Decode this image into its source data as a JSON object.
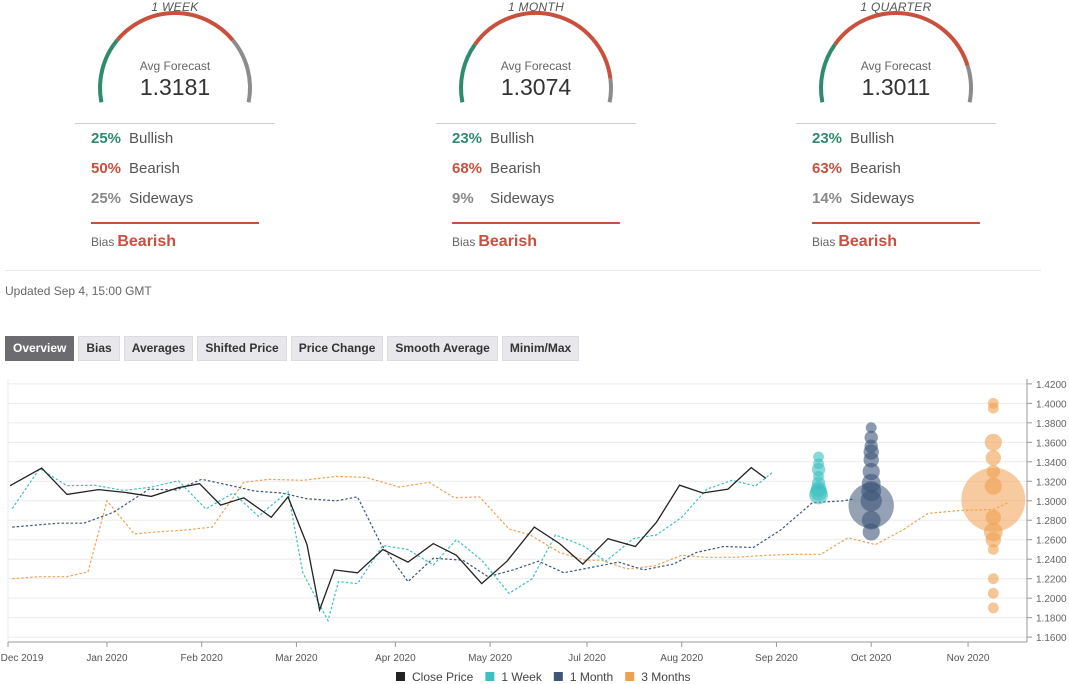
{
  "colors": {
    "bullish": "#2e8b6e",
    "bearish": "#c8503c",
    "sideways": "#8c8c8c",
    "close": "#222222",
    "week": "#3cc0c0",
    "month": "#3e5678",
    "quarter": "#f0a050"
  },
  "panels": [
    {
      "period": "1 WEEK",
      "avg_label": "Avg Forecast",
      "avg_value": "1.3181",
      "bullish": {
        "pct": "25%",
        "label": "Bullish",
        "value": 25
      },
      "bearish": {
        "pct": "50%",
        "label": "Bearish",
        "value": 50
      },
      "sideways": {
        "pct": "25%",
        "label": "Sideways",
        "value": 25
      },
      "bias_label": "Bias",
      "bias_value": "Bearish"
    },
    {
      "period": "1 MONTH",
      "avg_label": "Avg Forecast",
      "avg_value": "1.3074",
      "bullish": {
        "pct": "23%",
        "label": "Bullish",
        "value": 23
      },
      "bearish": {
        "pct": "68%",
        "label": "Bearish",
        "value": 68
      },
      "sideways": {
        "pct": "9%",
        "label": "Sideways",
        "value": 9
      },
      "bias_label": "Bias",
      "bias_value": "Bearish"
    },
    {
      "period": "1 QUARTER",
      "avg_label": "Avg Forecast",
      "avg_value": "1.3011",
      "bullish": {
        "pct": "23%",
        "label": "Bullish",
        "value": 23
      },
      "bearish": {
        "pct": "63%",
        "label": "Bearish",
        "value": 63
      },
      "sideways": {
        "pct": "14%",
        "label": "Sideways",
        "value": 14
      },
      "bias_label": "Bias",
      "bias_value": "Bearish"
    }
  ],
  "updated": "Updated Sep 4, 15:00 GMT",
  "tabs": [
    "Overview",
    "Bias",
    "Averages",
    "Shifted Price",
    "Price Change",
    "Smooth Average",
    "Minim/Max"
  ],
  "active_tab": "Overview",
  "chart_data": {
    "type": "line",
    "x_tick_labels": [
      "Dec 2019",
      "Jan 2020",
      "Feb 2020",
      "Mar 2020",
      "Apr 2020",
      "May 2020",
      "Jul 2020",
      "Aug 2020",
      "Sep 2020",
      "Oct 2020",
      "Nov 2020"
    ],
    "y_tick_labels": [
      "1.1600",
      "1.1800",
      "1.2000",
      "1.2200",
      "1.2400",
      "1.2600",
      "1.2800",
      "1.3000",
      "1.3200",
      "1.3400",
      "1.3600",
      "1.3800",
      "1.4000",
      "1.4200"
    ],
    "ylim": [
      1.155,
      1.425
    ],
    "x_axis": "weeks since Dec 2019 (0 = Dec 2019 tick)",
    "xlim": [
      -0.2,
      48.2
    ],
    "legend_position": "bottom-center",
    "series": [
      {
        "name": "Close Price",
        "style": "solid",
        "x": [
          -0.1,
          1.4,
          2.6,
          4.1,
          5.4,
          6.6,
          7.9,
          8.9,
          9.9,
          11.0,
          12.3,
          13.1,
          14.0,
          14.6,
          15.3,
          16.4,
          17.6,
          18.8,
          20.0,
          21.1,
          22.3,
          23.5,
          24.8,
          26.0,
          27.1,
          28.3,
          29.6,
          30.6,
          31.7,
          32.8,
          34.0,
          35.1,
          35.8
        ],
        "y": [
          1.3155,
          1.3335,
          1.3065,
          1.3115,
          1.3085,
          1.3045,
          1.3135,
          1.3175,
          1.2955,
          1.303,
          1.283,
          1.304,
          1.255,
          1.188,
          1.229,
          1.226,
          1.25,
          1.237,
          1.256,
          1.244,
          1.215,
          1.238,
          1.273,
          1.256,
          1.235,
          1.261,
          1.253,
          1.278,
          1.316,
          1.308,
          1.312,
          1.334,
          1.323
        ]
      },
      {
        "name": "1 Week",
        "style": "dashed",
        "x": [
          0.0,
          1.3,
          2.6,
          3.9,
          5.3,
          6.6,
          7.9,
          9.2,
          10.5,
          11.7,
          13.1,
          13.8,
          15.0,
          15.5,
          16.4,
          17.6,
          18.8,
          20.0,
          21.1,
          22.3,
          23.6,
          24.7,
          25.8,
          27.1,
          28.2,
          29.5,
          30.6,
          31.8,
          33.0,
          34.2,
          35.3,
          36.1
        ],
        "y": [
          1.292,
          1.333,
          1.3155,
          1.316,
          1.3105,
          1.314,
          1.3205,
          1.2915,
          1.308,
          1.284,
          1.3095,
          1.226,
          1.177,
          1.217,
          1.215,
          1.254,
          1.25,
          1.234,
          1.26,
          1.239,
          1.205,
          1.22,
          1.265,
          1.254,
          1.238,
          1.261,
          1.265,
          1.283,
          1.312,
          1.321,
          1.315,
          1.329
        ]
      },
      {
        "name": "1 Month",
        "style": "dashed",
        "x": [
          0.0,
          2.2,
          3.4,
          4.8,
          6.5,
          7.8,
          9.0,
          10.3,
          11.5,
          12.8,
          14.0,
          15.4,
          16.4,
          17.5,
          18.8,
          20.0,
          21.4,
          22.6,
          23.8,
          25.0,
          26.2,
          27.6,
          28.8,
          30.0,
          31.4,
          32.5,
          33.8,
          35.2,
          36.5,
          38.0,
          39.5,
          40.0
        ],
        "y": [
          1.273,
          1.277,
          1.277,
          1.288,
          1.312,
          1.311,
          1.322,
          1.316,
          1.31,
          1.308,
          1.302,
          1.3,
          1.304,
          1.256,
          1.217,
          1.241,
          1.239,
          1.222,
          1.229,
          1.238,
          1.226,
          1.232,
          1.237,
          1.229,
          1.235,
          1.247,
          1.253,
          1.252,
          1.27,
          1.298,
          1.3,
          1.302
        ]
      },
      {
        "name": "3 Months",
        "style": "dashed",
        "x": [
          0.0,
          1.3,
          2.6,
          3.6,
          4.5,
          5.8,
          6.9,
          8.2,
          9.5,
          11.0,
          12.2,
          13.8,
          15.4,
          16.8,
          18.4,
          19.8,
          21.0,
          22.2,
          23.6,
          24.6,
          26.0,
          27.2,
          28.0,
          29.2,
          30.5,
          31.8,
          33.0,
          34.4,
          35.8,
          37.2,
          38.4,
          39.7,
          41.0,
          42.3,
          43.5,
          45.0,
          46.6,
          47.3
        ],
        "y": [
          1.22,
          1.222,
          1.222,
          1.227,
          1.3,
          1.266,
          1.268,
          1.27,
          1.273,
          1.319,
          1.322,
          1.321,
          1.325,
          1.324,
          1.314,
          1.319,
          1.303,
          1.304,
          1.271,
          1.265,
          1.247,
          1.239,
          1.239,
          1.23,
          1.233,
          1.244,
          1.242,
          1.242,
          1.244,
          1.245,
          1.245,
          1.262,
          1.255,
          1.27,
          1.287,
          1.29,
          1.291,
          1.298
        ]
      }
    ],
    "bubbles": [
      {
        "series": "1 Week",
        "y": [
          1.345,
          1.338,
          1.332,
          1.325,
          1.318,
          1.312,
          1.309,
          1.306
        ],
        "size": [
          1,
          1,
          2,
          1,
          2,
          3,
          4,
          5
        ]
      },
      {
        "series": "1 Month",
        "y": [
          1.375,
          1.365,
          1.356,
          1.35,
          1.342,
          1.33,
          1.318,
          1.31,
          1.3,
          1.295,
          1.28,
          1.268
        ],
        "size": [
          1,
          2,
          2,
          3,
          3,
          4,
          5,
          6,
          7,
          11,
          5,
          4
        ]
      },
      {
        "series": "3 Months",
        "y": [
          1.4,
          1.395,
          1.36,
          1.344,
          1.33,
          1.315,
          1.301,
          1.283,
          1.268,
          1.26,
          1.25,
          1.22,
          1.205,
          1.19
        ],
        "size": [
          1,
          1,
          4,
          3,
          2,
          4,
          18,
          3,
          5,
          3,
          1,
          1,
          1,
          1
        ]
      }
    ]
  }
}
